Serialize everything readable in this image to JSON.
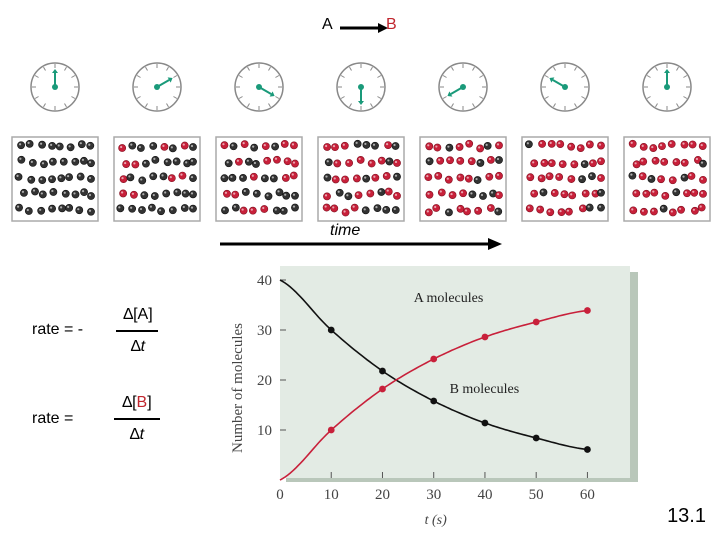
{
  "reaction": {
    "a": "A",
    "b": "B",
    "arrow_color": "#000000",
    "b_color": "#c0262e"
  },
  "clocks": [
    {
      "hand_angle": 0
    },
    {
      "hand_angle": 60
    },
    {
      "hand_angle": 120
    },
    {
      "hand_angle": 180
    },
    {
      "hand_angle": 240
    },
    {
      "hand_angle": 300
    },
    {
      "hand_angle": 0
    }
  ],
  "snapshots": [
    {
      "a": 40,
      "b": 0
    },
    {
      "a": 30,
      "b": 10
    },
    {
      "a": 22,
      "b": 18
    },
    {
      "a": 16,
      "b": 24
    },
    {
      "a": 11,
      "b": 29
    },
    {
      "a": 8,
      "b": 32
    },
    {
      "a": 6,
      "b": 34
    }
  ],
  "time_label": "time",
  "equations": [
    {
      "lhs": "rate = -",
      "num_prefix": "∆[",
      "species": "A",
      "num_suffix": "]",
      "den_prefix": "∆",
      "den_var": "t",
      "species_color": "#000000"
    },
    {
      "lhs": "rate =",
      "num_prefix": "∆[",
      "species": "B",
      "num_suffix": "]",
      "den_prefix": "∆",
      "den_var": "t",
      "species_color": "#c0262e"
    }
  ],
  "chart_data": {
    "type": "line",
    "x": [
      0,
      10,
      20,
      30,
      40,
      50,
      60
    ],
    "series": [
      {
        "name": "A molecules",
        "values": [
          40,
          30,
          21.8,
          15.8,
          11.4,
          8.4,
          6.1
        ],
        "color": "#111111"
      },
      {
        "name": "B molecules",
        "values": [
          0,
          10,
          18.2,
          24.2,
          28.6,
          31.6,
          33.9
        ],
        "color": "#c8203a"
      }
    ],
    "xlabel": "t (s)",
    "ylabel": "Number of molecules",
    "xticks": [
      0,
      10,
      20,
      30,
      40,
      50,
      60
    ],
    "yticks": [
      10,
      20,
      30,
      40
    ],
    "xlim": [
      0,
      65
    ],
    "ylim": [
      0,
      40
    ],
    "panel_color": "#e3ebe4",
    "grid": false
  },
  "slide_number": "13.1"
}
